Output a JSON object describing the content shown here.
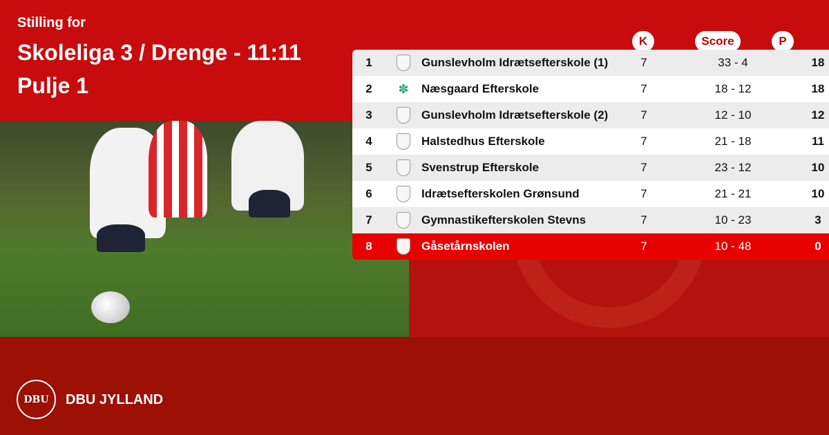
{
  "header": {
    "line1": "Stilling for",
    "line2": "Skoleliga 3 / Drenge - 11:11",
    "line3": "Pulje 1"
  },
  "columns": {
    "k": "K",
    "score": "Score",
    "p": "P"
  },
  "rows": [
    {
      "rank": "1",
      "logo": "shield-icon",
      "team": "Gunslevholm Idrætsefterskole (1)",
      "k": "7",
      "score": "33 - 4",
      "p": "18"
    },
    {
      "rank": "2",
      "logo": "tree-icon",
      "team": "Næsgaard Efterskole",
      "k": "7",
      "score": "18 - 12",
      "p": "18"
    },
    {
      "rank": "3",
      "logo": "shield-icon",
      "team": "Gunslevholm Idrætsefterskole (2)",
      "k": "7",
      "score": "12 - 10",
      "p": "12"
    },
    {
      "rank": "4",
      "logo": "shield-icon",
      "team": "Halstedhus Efterskole",
      "k": "7",
      "score": "21 - 18",
      "p": "11"
    },
    {
      "rank": "5",
      "logo": "shield-icon",
      "team": "Svenstrup Efterskole",
      "k": "7",
      "score": "23 - 12",
      "p": "10"
    },
    {
      "rank": "6",
      "logo": "shield-icon",
      "team": "Idrætsefterskolen Grønsund",
      "k": "7",
      "score": "21 - 21",
      "p": "10"
    },
    {
      "rank": "7",
      "logo": "shield-icon",
      "team": "Gymnastikefterskolen Stevns",
      "k": "7",
      "score": "10 - 23",
      "p": "3"
    },
    {
      "rank": "8",
      "logo": "shield-icon",
      "team": "Gåsetårnskolen",
      "k": "7",
      "score": "10 - 48",
      "p": "0",
      "highlight": true
    }
  ],
  "footer": {
    "brand": "DBU JYLLAND",
    "logo_text": "DBU"
  },
  "colors": {
    "top": "#c80b0d",
    "bottom": "#9c1006",
    "highlight_row": "#e80000"
  }
}
